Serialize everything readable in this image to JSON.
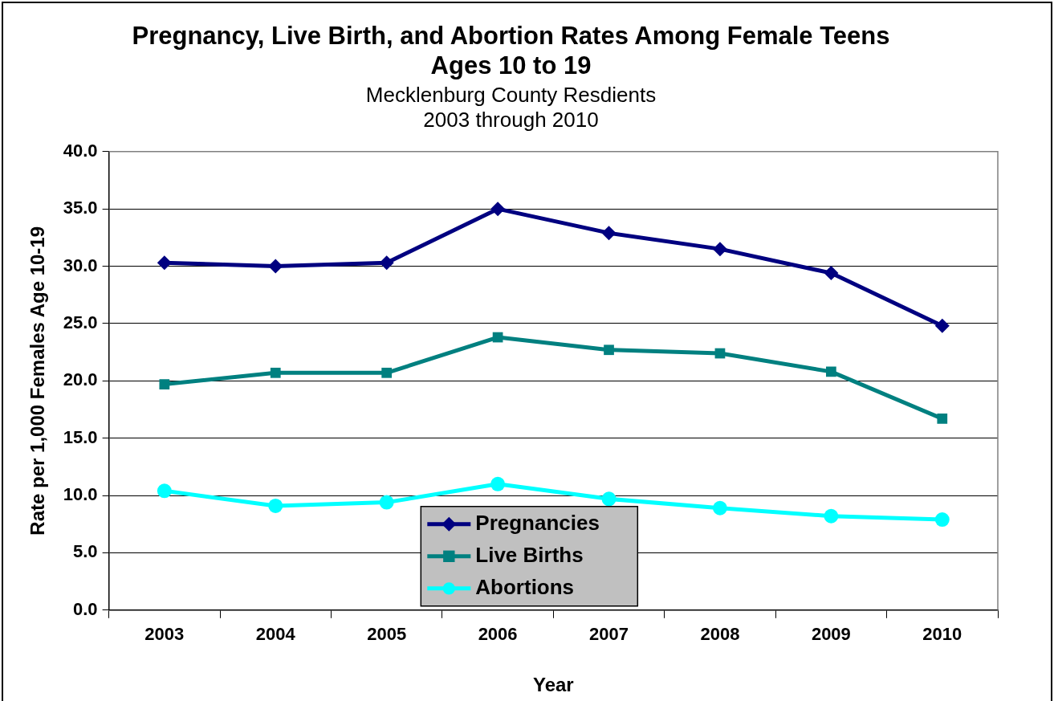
{
  "chart_data": {
    "type": "line",
    "title": "Pregnancy, Live Birth, and Abortion Rates Among Female Teens Ages 10 to 19",
    "subtitle": "Mecklenburg County Resdients\n2003 through 2010",
    "xlabel": "Year",
    "ylabel": "Rate per 1,000 Females Age 10-19",
    "categories": [
      "2003",
      "2004",
      "2005",
      "2006",
      "2007",
      "2008",
      "2009",
      "2010"
    ],
    "series": [
      {
        "name": "Pregnancies",
        "color": "#000080",
        "marker": "diamond",
        "values": [
          30.3,
          30.0,
          30.3,
          35.0,
          32.9,
          31.5,
          29.4,
          24.8
        ]
      },
      {
        "name": "Live Births",
        "color": "#008080",
        "marker": "square",
        "values": [
          19.7,
          20.7,
          20.7,
          23.8,
          22.7,
          22.4,
          20.8,
          16.7
        ]
      },
      {
        "name": "Abortions",
        "color": "#00ffff",
        "marker": "circle",
        "values": [
          10.4,
          9.1,
          9.4,
          11.0,
          9.7,
          8.9,
          8.2,
          7.9
        ]
      }
    ],
    "ylim": [
      0,
      40
    ],
    "yticks": [
      {
        "value": 0,
        "label": "0.0"
      },
      {
        "value": 5,
        "label": "5.0"
      },
      {
        "value": 10,
        "label": "10.0"
      },
      {
        "value": 15,
        "label": "15.0"
      },
      {
        "value": 20,
        "label": "20.0"
      },
      {
        "value": 25,
        "label": "25.0"
      },
      {
        "value": 30,
        "label": "30.0"
      },
      {
        "value": 35,
        "label": "35.0"
      },
      {
        "value": 40,
        "label": "40.0"
      }
    ],
    "grid": "y",
    "legend": "bottom",
    "line_style": "solid"
  }
}
